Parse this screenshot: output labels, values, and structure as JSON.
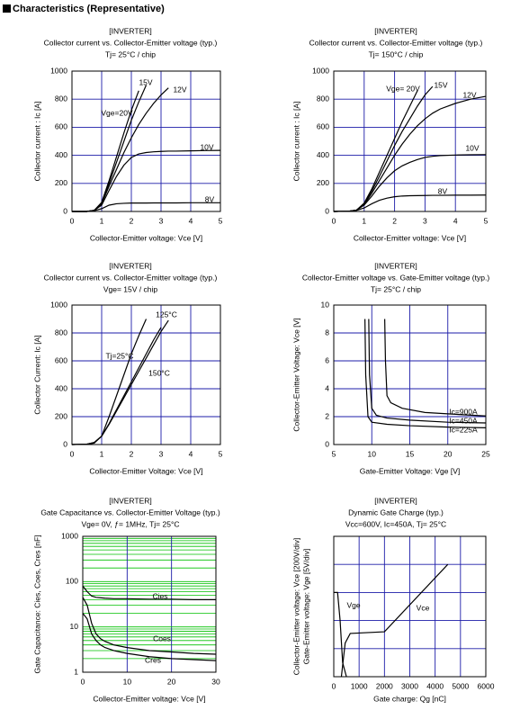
{
  "header": "Characteristics (Representative)",
  "chart_data": [
    {
      "type": "line",
      "title": [
        "[INVERTER]",
        "Collector current vs. Collector-Emitter voltage (typ.)",
        "Tj= 25°C / chip"
      ],
      "xlabel": "Collector-Emitter voltage: Vce [V]",
      "ylabel": "Collector current : Ic [A]",
      "x": [
        0,
        0.5,
        0.75,
        1,
        1.25,
        1.5,
        1.75,
        2,
        2.25,
        2.5,
        2.75,
        3,
        3.25,
        3.5,
        4,
        4.5,
        5
      ],
      "xlim": [
        0,
        5
      ],
      "xticks": [
        0,
        1,
        2,
        3,
        4,
        5
      ],
      "ylim": [
        0,
        1000
      ],
      "yticks": [
        0,
        200,
        400,
        600,
        800,
        1000
      ],
      "grid": true,
      "grid_color": "#1c1ca8",
      "series": [
        {
          "name": "8V",
          "color": "#000000",
          "values": [
            0,
            0,
            5,
            20,
            45,
            55,
            58,
            60,
            60,
            60,
            61,
            61,
            61,
            61,
            62,
            62,
            62
          ]
        },
        {
          "name": "10V",
          "color": "#000000",
          "values": [
            0,
            0,
            8,
            45,
            150,
            250,
            330,
            385,
            410,
            420,
            425,
            428,
            430,
            430,
            432,
            434,
            435
          ]
        },
        {
          "name": "12V",
          "color": "#000000",
          "values": [
            0,
            0,
            8,
            55,
            180,
            300,
            420,
            525,
            620,
            700,
            770,
            830,
            880,
            null,
            null,
            null,
            null
          ]
        },
        {
          "name": "15V",
          "color": "#000000",
          "values": [
            0,
            0,
            8,
            60,
            200,
            350,
            500,
            650,
            780,
            900,
            null,
            null,
            null,
            null,
            null,
            null,
            null
          ]
        },
        {
          "name": "Vge=20V",
          "color": "#000000",
          "values": [
            0,
            0,
            8,
            65,
            220,
            390,
            560,
            720,
            860,
            null,
            null,
            null,
            null,
            null,
            null,
            null,
            null
          ]
        }
      ]
    },
    {
      "type": "line",
      "title": [
        "[INVERTER]",
        "Collector current vs. Collector-Emitter voltage (typ.)",
        "Tj= 150°C / chip"
      ],
      "xlabel": "Collector-Emitter voltage: Vce [V]",
      "ylabel": "Collector current : Ic [A]",
      "x": [
        0,
        0.5,
        0.75,
        1,
        1.25,
        1.5,
        1.75,
        2,
        2.25,
        2.5,
        2.75,
        3,
        3.25,
        3.5,
        4,
        4.5,
        5
      ],
      "xlim": [
        0,
        5
      ],
      "xticks": [
        0,
        1,
        2,
        3,
        4,
        5
      ],
      "ylim": [
        0,
        1000
      ],
      "yticks": [
        0,
        200,
        400,
        600,
        800,
        1000
      ],
      "grid": true,
      "grid_color": "#1c1ca8",
      "series": [
        {
          "name": "8V",
          "color": "#000000",
          "values": [
            0,
            2,
            8,
            25,
            55,
            80,
            95,
            105,
            110,
            112,
            113,
            114,
            115,
            115,
            116,
            116,
            117
          ]
        },
        {
          "name": "10V",
          "color": "#000000",
          "values": [
            0,
            2,
            10,
            45,
            110,
            180,
            240,
            290,
            325,
            350,
            370,
            385,
            393,
            398,
            402,
            404,
            405
          ]
        },
        {
          "name": "12V",
          "color": "#000000",
          "values": [
            0,
            2,
            10,
            50,
            130,
            220,
            310,
            400,
            480,
            550,
            610,
            660,
            700,
            730,
            770,
            800,
            820
          ]
        },
        {
          "name": "15V",
          "color": "#000000",
          "values": [
            0,
            2,
            10,
            55,
            145,
            250,
            360,
            470,
            570,
            660,
            750,
            830,
            890,
            null,
            null,
            null,
            null
          ]
        },
        {
          "name": "Vge= 20V",
          "color": "#000000",
          "values": [
            0,
            2,
            10,
            60,
            160,
            280,
            400,
            520,
            640,
            750,
            860,
            null,
            null,
            null,
            null,
            null,
            null
          ]
        }
      ]
    },
    {
      "type": "line",
      "title": [
        "[INVERTER]",
        "Collector current vs. Collector-Emitter voltage (typ.)",
        "Vge= 15V / chip"
      ],
      "xlabel": "Collector-Emitter Voltage: Vce [V]",
      "ylabel": "Collector Current: Ic [A]",
      "x": [
        0,
        0.5,
        0.75,
        1,
        1.25,
        1.5,
        1.75,
        2,
        2.25,
        2.5,
        2.75,
        3,
        3.25,
        3.5,
        4,
        4.5,
        5
      ],
      "xlim": [
        0,
        5
      ],
      "xticks": [
        0,
        1,
        2,
        3,
        4,
        5
      ],
      "ylim": [
        0,
        1000
      ],
      "yticks": [
        0,
        200,
        400,
        600,
        800,
        1000
      ],
      "grid": true,
      "grid_color": "#1c1ca8",
      "series": [
        {
          "name": "Tj=25°C",
          "color": "#000000",
          "values": [
            0,
            2,
            10,
            60,
            200,
            350,
            500,
            650,
            780,
            900,
            null,
            null,
            null,
            null,
            null,
            null,
            null
          ]
        },
        {
          "name": "125°C",
          "color": "#000000",
          "values": [
            0,
            3,
            15,
            60,
            150,
            250,
            350,
            450,
            550,
            650,
            750,
            840,
            null,
            null,
            null,
            null,
            null
          ]
        },
        {
          "name": "150°C",
          "color": "#000000",
          "values": [
            0,
            3,
            15,
            60,
            145,
            240,
            335,
            430,
            525,
            620,
            715,
            810,
            890,
            null,
            null,
            null,
            null
          ]
        }
      ]
    },
    {
      "type": "line",
      "title": [
        "[INVERTER]",
        "Collector-Emitter voltage  vs. Gate-Emitter voltage (typ.)",
        "Tj= 25°C / chip"
      ],
      "xlabel": "Gate-Emitter Voltage: Vge [V]",
      "ylabel": "Collector-Emitter Voltage: Vce [V]",
      "xlim": [
        5,
        25
      ],
      "xticks": [
        5,
        10,
        15,
        20,
        25
      ],
      "ylim": [
        0,
        10
      ],
      "yticks": [
        0,
        2,
        4,
        6,
        8,
        10
      ],
      "grid": true,
      "grid_color": "#1c1ca8",
      "series": [
        {
          "name": "Ic=900A",
          "color": "#000000",
          "x": [
            11.7,
            11.8,
            12.0,
            12.5,
            14,
            17,
            20,
            25
          ],
          "values": [
            9,
            6,
            3.5,
            3,
            2.6,
            2.3,
            2.2,
            2.05
          ]
        },
        {
          "name": "Ic=450A",
          "color": "#000000",
          "x": [
            9.6,
            9.7,
            10.0,
            10.6,
            12,
            15,
            20,
            25
          ],
          "values": [
            9,
            5,
            2.6,
            2.1,
            1.9,
            1.75,
            1.6,
            1.55
          ]
        },
        {
          "name": "Ic=225A",
          "color": "#000000",
          "x": [
            9.1,
            9.2,
            9.5,
            10,
            12,
            15,
            20,
            25
          ],
          "values": [
            9,
            5,
            2,
            1.6,
            1.45,
            1.35,
            1.25,
            1.2
          ]
        }
      ]
    },
    {
      "type": "line",
      "title": [
        "[INVERTER]",
        "Gate Capacitance vs. Collector-Emitter Voltage  (typ.)",
        "Vge= 0V, ƒ= 1MHz, Tj= 25°C"
      ],
      "xlabel": "Collector-Emitter voltage: Vce [V]",
      "ylabel": "Gate Capacitance: Cies, Coes, Cres [nF]",
      "x": [
        0,
        1,
        2,
        3,
        4,
        5,
        7,
        10,
        15,
        20,
        25,
        30
      ],
      "xlim": [
        0,
        30
      ],
      "xticks": [
        0,
        10,
        20,
        30
      ],
      "ylim": [
        1,
        1000
      ],
      "yticks": [
        1,
        10,
        100,
        1000
      ],
      "ylog": true,
      "grid": true,
      "grid_color": "#1c1ca8",
      "ygrid_color": "#00c000",
      "series": [
        {
          "name": "Cies",
          "color": "#000000",
          "values": [
            80,
            60,
            48,
            45,
            44,
            43,
            42,
            42,
            41,
            41,
            40,
            40
          ]
        },
        {
          "name": "Coes",
          "color": "#000000",
          "values": [
            45,
            30,
            12,
            7,
            5.5,
            4.8,
            4,
            3.5,
            3,
            2.8,
            2.6,
            2.5
          ]
        },
        {
          "name": "Cres",
          "color": "#000000",
          "values": [
            20,
            15,
            7,
            5,
            4,
            3.5,
            3,
            2.6,
            2.2,
            2,
            1.9,
            1.8
          ]
        }
      ]
    },
    {
      "type": "line",
      "title": [
        "[INVERTER]",
        "Dynamic Gate Charge (typ.)",
        "Vcc=600V, Ic=450A, Tj= 25°C"
      ],
      "xlabel": "Gate charge: Qg [nC]",
      "ylabel": [
        "Collector-Emitter voltage: Vce [200V/div]",
        "Gate-Emitter voltage:  Vge [5V/div]"
      ],
      "xlim": [
        0,
        6000
      ],
      "xticks": [
        0,
        1000,
        2000,
        3000,
        4000,
        5000,
        6000
      ],
      "ylim": [
        0,
        1000
      ],
      "yticks": [
        0,
        200,
        400,
        600,
        800,
        1000
      ],
      "ytick_labels": false,
      "y2lim": [
        0,
        25
      ],
      "grid": true,
      "grid_color": "#1c1ca8",
      "series": [
        {
          "name": "Vge",
          "color": "#000000",
          "axis": "y2",
          "x": [
            300,
            450,
            650,
            2000,
            4500
          ],
          "values": [
            0,
            6,
            7.7,
            8,
            20
          ]
        },
        {
          "name": "Vce",
          "color": "#000000",
          "x": [
            0,
            150,
            250,
            350,
            500
          ],
          "values": [
            600,
            600,
            400,
            100,
            0
          ]
        }
      ]
    }
  ]
}
